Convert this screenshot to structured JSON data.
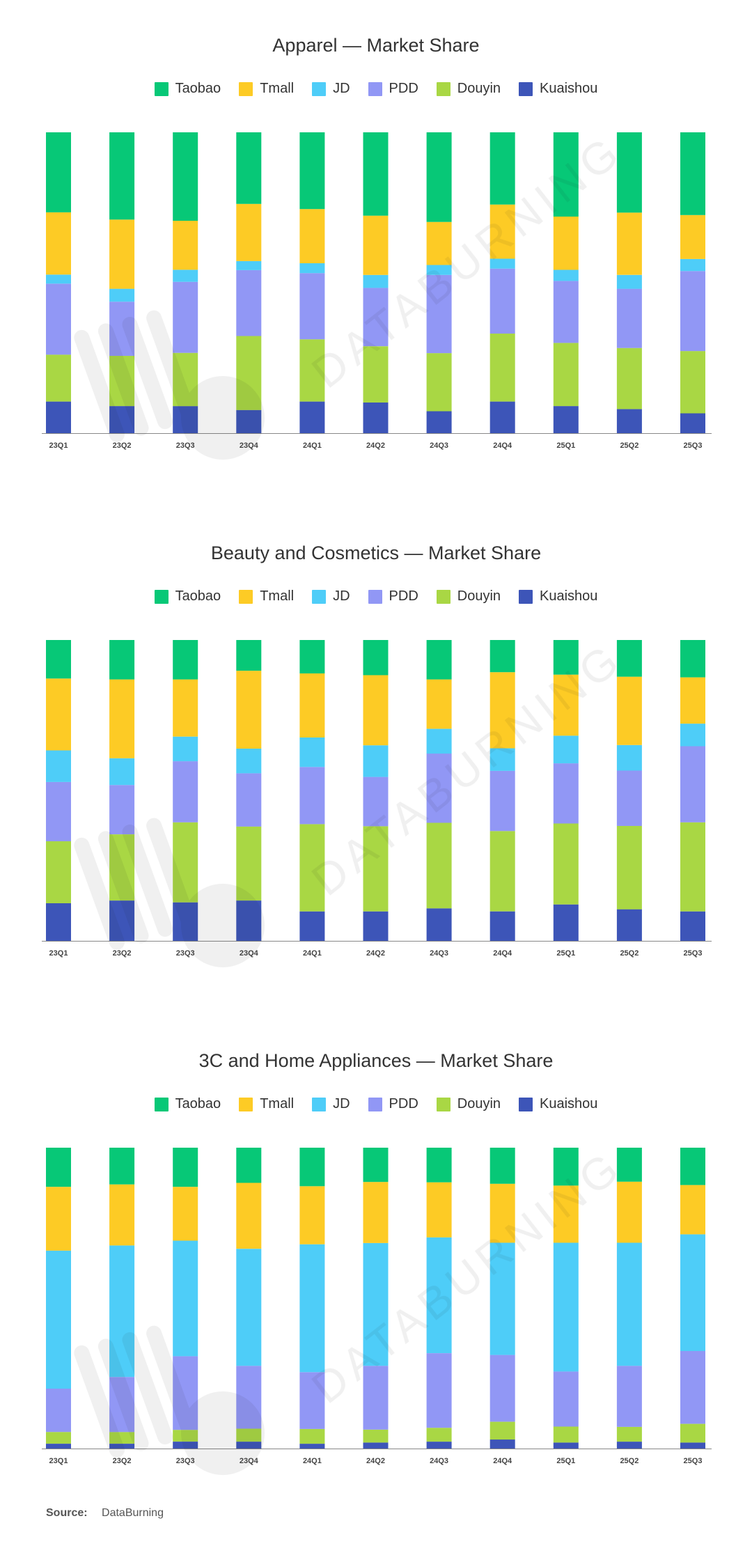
{
  "colors": {
    "Taobao": "#07C877",
    "Tmall": "#FDCB25",
    "JD": "#4ECDF8",
    "PDD": "#9197F5",
    "Douyin": "#A9D744",
    "Kuaishou": "#3D55B8"
  },
  "chart_data": [
    {
      "type": "bar",
      "stacked": true,
      "title": "Apparel — Market Share",
      "legend_position": "top-center",
      "categories": [
        "23Q1",
        "23Q2",
        "23Q3",
        "23Q4",
        "24Q1",
        "24Q2",
        "24Q3",
        "24Q4",
        "25Q1",
        "25Q2",
        "25Q3"
      ],
      "ylim": [
        0,
        100
      ],
      "series": [
        {
          "name": "Kuaishou",
          "values": [
            10.5,
            9.0,
            9.0,
            7.7,
            10.5,
            10.2,
            7.3,
            10.5,
            9.0,
            8.0,
            6.6
          ]
        },
        {
          "name": "Douyin",
          "values": [
            15.6,
            16.7,
            17.7,
            24.6,
            20.7,
            18.7,
            19.3,
            22.6,
            21.0,
            20.3,
            20.7
          ]
        },
        {
          "name": "PDD",
          "values": [
            23.6,
            18.0,
            23.6,
            21.9,
            22.0,
            19.4,
            26.0,
            21.6,
            20.6,
            19.7,
            26.6
          ]
        },
        {
          "name": "JD",
          "values": [
            3.0,
            4.3,
            4.0,
            3.0,
            3.3,
            4.3,
            3.3,
            3.3,
            3.7,
            4.6,
            4.0
          ]
        },
        {
          "name": "Tmall",
          "values": [
            20.7,
            23.0,
            16.3,
            19.0,
            18.0,
            19.7,
            14.3,
            18.0,
            17.7,
            20.7,
            14.6
          ]
        },
        {
          "name": "Taobao",
          "values": [
            26.6,
            29.0,
            29.4,
            23.8,
            25.5,
            27.7,
            29.8,
            24.0,
            28.0,
            26.7,
            27.5
          ]
        }
      ]
    },
    {
      "type": "bar",
      "stacked": true,
      "title": "Beauty and Cosmetics — Market Share",
      "legend_position": "top-center",
      "categories": [
        "23Q1",
        "23Q2",
        "23Q3",
        "23Q4",
        "24Q1",
        "24Q2",
        "24Q3",
        "24Q4",
        "25Q1",
        "25Q2",
        "25Q3"
      ],
      "ylim": [
        0,
        100
      ],
      "series": [
        {
          "name": "Kuaishou",
          "values": [
            12.5,
            13.4,
            12.8,
            13.4,
            9.8,
            9.8,
            10.8,
            9.8,
            12.1,
            10.5,
            9.8
          ]
        },
        {
          "name": "Douyin",
          "values": [
            20.6,
            22.0,
            26.6,
            24.6,
            29.0,
            28.3,
            28.4,
            26.7,
            26.9,
            27.7,
            29.6
          ]
        },
        {
          "name": "PDD",
          "values": [
            19.7,
            16.4,
            20.3,
            17.7,
            19.0,
            16.4,
            23.0,
            20.0,
            20.0,
            18.4,
            25.3
          ]
        },
        {
          "name": "JD",
          "values": [
            10.5,
            8.9,
            8.2,
            8.2,
            9.8,
            10.5,
            8.2,
            7.5,
            9.2,
            8.5,
            7.5
          ]
        },
        {
          "name": "Tmall",
          "values": [
            23.9,
            26.2,
            19.0,
            25.9,
            21.3,
            23.3,
            16.4,
            25.3,
            20.3,
            22.7,
            15.4
          ]
        },
        {
          "name": "Taobao",
          "values": [
            12.8,
            13.1,
            13.1,
            10.2,
            11.1,
            11.7,
            13.1,
            10.7,
            11.5,
            12.2,
            12.4
          ]
        }
      ]
    },
    {
      "type": "bar",
      "stacked": true,
      "title": "3C and Home Appliances — Market Share",
      "legend_position": "top-center",
      "categories": [
        "23Q1",
        "23Q2",
        "23Q3",
        "23Q4",
        "24Q1",
        "24Q2",
        "24Q3",
        "24Q4",
        "25Q1",
        "25Q2",
        "25Q3"
      ],
      "ylim": [
        0,
        100
      ],
      "series": [
        {
          "name": "Kuaishou",
          "values": [
            1.6,
            1.6,
            2.3,
            2.3,
            1.6,
            2.0,
            2.3,
            3.0,
            2.0,
            2.3,
            2.0
          ]
        },
        {
          "name": "Douyin",
          "values": [
            3.9,
            3.9,
            3.9,
            4.3,
            4.9,
            4.3,
            4.6,
            5.9,
            5.3,
            4.9,
            6.2
          ]
        },
        {
          "name": "PDD",
          "values": [
            14.4,
            18.3,
            24.5,
            20.9,
            18.9,
            21.2,
            24.8,
            22.2,
            18.3,
            20.3,
            24.2
          ]
        },
        {
          "name": "JD",
          "values": [
            45.9,
            43.7,
            38.4,
            38.9,
            42.5,
            40.8,
            38.5,
            37.3,
            42.8,
            40.9,
            38.8
          ]
        },
        {
          "name": "Tmall",
          "values": [
            21.2,
            20.3,
            17.9,
            21.9,
            19.3,
            20.3,
            18.3,
            19.6,
            19.0,
            20.3,
            16.4
          ]
        },
        {
          "name": "Taobao",
          "values": [
            13.0,
            12.2,
            13.0,
            11.7,
            12.8,
            11.4,
            11.5,
            12.0,
            12.6,
            11.3,
            12.4
          ]
        }
      ]
    }
  ],
  "legend_order": [
    "Taobao",
    "Tmall",
    "JD",
    "PDD",
    "Douyin",
    "Kuaishou"
  ],
  "source": {
    "label": "Source:",
    "value": "DataBurning"
  },
  "watermark": {
    "brand_text": "DATABURNING"
  }
}
